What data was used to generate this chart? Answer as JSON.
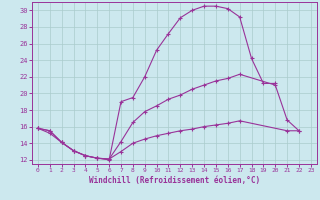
{
  "xlabel": "Windchill (Refroidissement éolien,°C)",
  "bg_color": "#cce8ee",
  "grid_color": "#aacccc",
  "line_color": "#993399",
  "xlim": [
    -0.5,
    23.5
  ],
  "ylim": [
    11.5,
    31
  ],
  "xticks": [
    0,
    1,
    2,
    3,
    4,
    5,
    6,
    7,
    8,
    9,
    10,
    11,
    12,
    13,
    14,
    15,
    16,
    17,
    18,
    19,
    20,
    21,
    22,
    23
  ],
  "yticks": [
    12,
    14,
    16,
    18,
    20,
    22,
    24,
    26,
    28,
    30
  ],
  "line1_x": [
    0,
    1,
    2,
    3,
    4,
    5,
    6,
    7,
    8,
    9,
    10,
    11,
    12,
    13,
    14,
    15,
    16,
    17,
    18,
    19,
    20
  ],
  "line1_y": [
    15.8,
    15.2,
    14.1,
    13.1,
    12.5,
    12.2,
    12.0,
    19.0,
    19.5,
    22.0,
    25.2,
    27.2,
    29.1,
    30.0,
    30.5,
    30.5,
    30.2,
    29.2,
    24.2,
    21.2,
    21.2
  ],
  "line2_x": [
    0,
    1,
    2,
    3,
    4,
    5,
    6,
    7,
    8,
    9,
    10,
    11,
    12,
    13,
    14,
    15,
    16,
    17,
    20,
    21,
    22
  ],
  "line2_y": [
    15.8,
    15.5,
    14.1,
    13.1,
    12.5,
    12.2,
    12.1,
    14.2,
    16.5,
    17.8,
    18.5,
    19.3,
    19.8,
    20.5,
    21.0,
    21.5,
    21.8,
    22.3,
    21.0,
    16.8,
    15.5
  ],
  "line3_x": [
    0,
    1,
    2,
    3,
    4,
    5,
    6,
    7,
    8,
    9,
    10,
    11,
    12,
    13,
    14,
    15,
    16,
    17,
    21,
    22
  ],
  "line3_y": [
    15.8,
    15.5,
    14.1,
    13.1,
    12.5,
    12.2,
    12.1,
    13.0,
    14.0,
    14.5,
    14.9,
    15.2,
    15.5,
    15.7,
    16.0,
    16.2,
    16.4,
    16.7,
    15.5,
    15.5
  ]
}
